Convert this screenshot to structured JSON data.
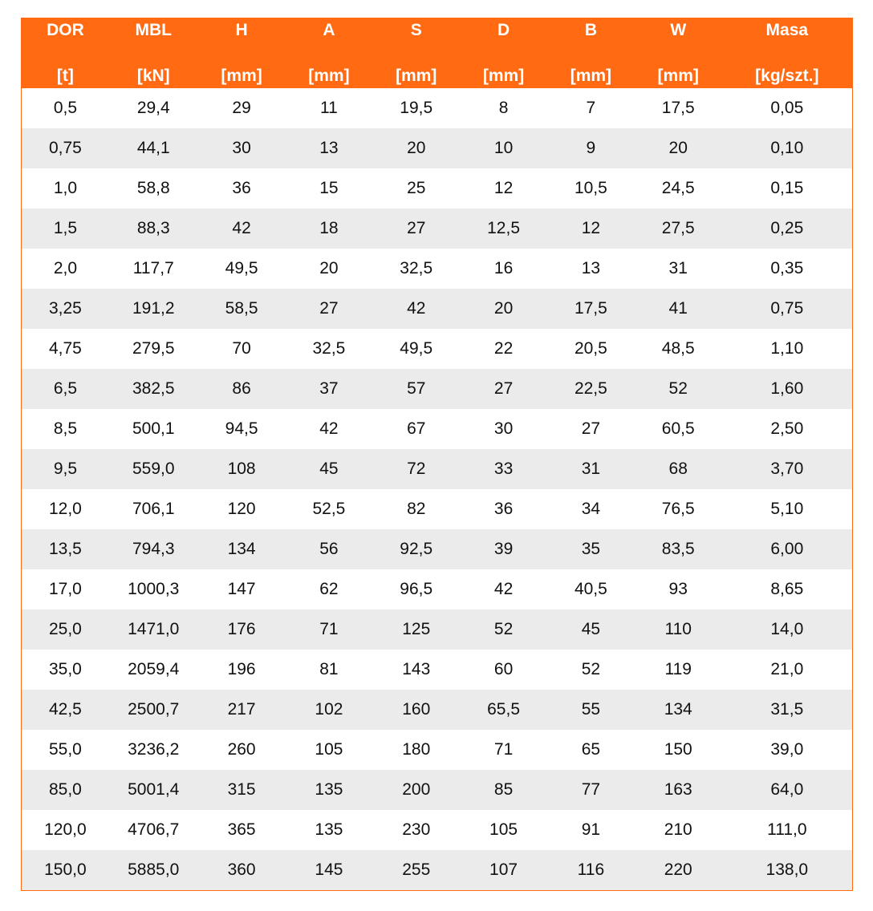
{
  "table": {
    "colors": {
      "header_bg": "#ff6a13",
      "header_text": "#ffffff",
      "stripe": "#ebebeb"
    },
    "headers": [
      {
        "name": "DOR",
        "unit": "[t]"
      },
      {
        "name": "MBL",
        "unit": "[kN]"
      },
      {
        "name": "H",
        "unit": "[mm]"
      },
      {
        "name": "A",
        "unit": "[mm]"
      },
      {
        "name": "S",
        "unit": "[mm]"
      },
      {
        "name": "D",
        "unit": "[mm]"
      },
      {
        "name": "B",
        "unit": "[mm]"
      },
      {
        "name": "W",
        "unit": "[mm]"
      },
      {
        "name": "Masa",
        "unit": "[kg/szt.]"
      }
    ],
    "rows": [
      [
        "0,5",
        "29,4",
        "29",
        "11",
        "19,5",
        "8",
        "7",
        "17,5",
        "0,05"
      ],
      [
        "0,75",
        "44,1",
        "30",
        "13",
        "20",
        "10",
        "9",
        "20",
        "0,10"
      ],
      [
        "1,0",
        "58,8",
        "36",
        "15",
        "25",
        "12",
        "10,5",
        "24,5",
        "0,15"
      ],
      [
        "1,5",
        "88,3",
        "42",
        "18",
        "27",
        "12,5",
        "12",
        "27,5",
        "0,25"
      ],
      [
        "2,0",
        "117,7",
        "49,5",
        "20",
        "32,5",
        "16",
        "13",
        "31",
        "0,35"
      ],
      [
        "3,25",
        "191,2",
        "58,5",
        "27",
        "42",
        "20",
        "17,5",
        "41",
        "0,75"
      ],
      [
        "4,75",
        "279,5",
        "70",
        "32,5",
        "49,5",
        "22",
        "20,5",
        "48,5",
        "1,10"
      ],
      [
        "6,5",
        "382,5",
        "86",
        "37",
        "57",
        "27",
        "22,5",
        "52",
        "1,60"
      ],
      [
        "8,5",
        "500,1",
        "94,5",
        "42",
        "67",
        "30",
        "27",
        "60,5",
        "2,50"
      ],
      [
        "9,5",
        "559,0",
        "108",
        "45",
        "72",
        "33",
        "31",
        "68",
        "3,70"
      ],
      [
        "12,0",
        "706,1",
        "120",
        "52,5",
        "82",
        "36",
        "34",
        "76,5",
        "5,10"
      ],
      [
        "13,5",
        "794,3",
        "134",
        "56",
        "92,5",
        "39",
        "35",
        "83,5",
        "6,00"
      ],
      [
        "17,0",
        "1000,3",
        "147",
        "62",
        "96,5",
        "42",
        "40,5",
        "93",
        "8,65"
      ],
      [
        "25,0",
        "1471,0",
        "176",
        "71",
        "125",
        "52",
        "45",
        "110",
        "14,0"
      ],
      [
        "35,0",
        "2059,4",
        "196",
        "81",
        "143",
        "60",
        "52",
        "119",
        "21,0"
      ],
      [
        "42,5",
        "2500,7",
        "217",
        "102",
        "160",
        "65,5",
        "55",
        "134",
        "31,5"
      ],
      [
        "55,0",
        "3236,2",
        "260",
        "105",
        "180",
        "71",
        "65",
        "150",
        "39,0"
      ],
      [
        "85,0",
        "5001,4",
        "315",
        "135",
        "200",
        "85",
        "77",
        "163",
        "64,0"
      ],
      [
        "120,0",
        "4706,7",
        "365",
        "135",
        "230",
        "105",
        "91",
        "210",
        "111,0"
      ],
      [
        "150,0",
        "5885,0",
        "360",
        "145",
        "255",
        "107",
        "116",
        "220",
        "138,0"
      ]
    ]
  }
}
